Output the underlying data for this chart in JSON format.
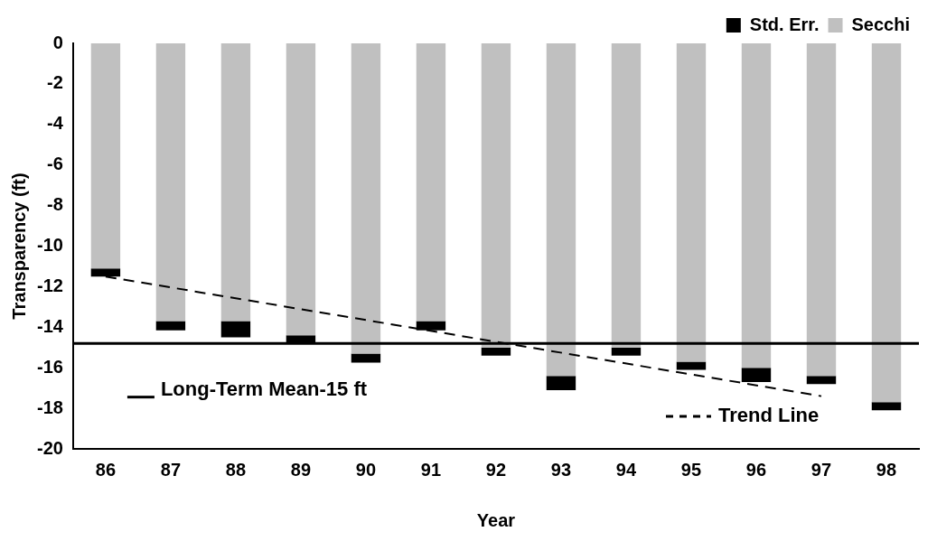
{
  "chart_data": {
    "type": "bar",
    "stacked": true,
    "xlabel": "Year",
    "ylabel": "Transparency (ft)",
    "categories": [
      "86",
      "87",
      "88",
      "89",
      "90",
      "91",
      "92",
      "93",
      "94",
      "95",
      "96",
      "97",
      "98"
    ],
    "series": [
      {
        "name": "Secchi",
        "color": "#c0c0c0",
        "values": [
          -11.1,
          -13.7,
          -13.7,
          -14.4,
          -15.3,
          -13.7,
          -15.0,
          -16.4,
          -15.0,
          -15.7,
          -16.0,
          -16.4,
          -17.7
        ]
      },
      {
        "name": "Std. Err.",
        "color": "#000000",
        "values": [
          -0.4,
          -0.45,
          -0.8,
          -0.4,
          -0.45,
          -0.45,
          -0.4,
          -0.7,
          -0.4,
          -0.4,
          -0.7,
          -0.4,
          -0.4
        ]
      },
      {
        "name": "Trend Line",
        "type": "line",
        "color": "#000000",
        "line_style": "dashed",
        "x": [
          "86",
          "97"
        ],
        "values": [
          -11.5,
          -17.4
        ]
      }
    ],
    "ylim": [
      -20,
      0
    ],
    "yticks": [
      0,
      -2,
      -4,
      -6,
      -8,
      -10,
      -12,
      -14,
      -16,
      -18,
      -20
    ],
    "grid": false,
    "legend": "top right",
    "ref_lines": [
      {
        "axis": "y",
        "value": -14.8,
        "label": "Long-Term Mean-15 ft",
        "color": "#000000",
        "line_style": "solid"
      }
    ]
  }
}
